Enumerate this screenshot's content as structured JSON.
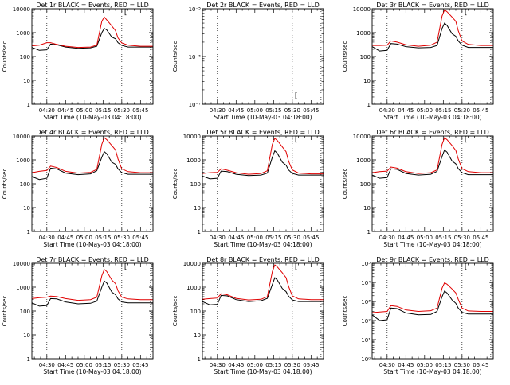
{
  "x_tick_labels": [
    "04:30",
    "04:45",
    "05:00",
    "05:15",
    "05:30",
    "05:45"
  ],
  "x_axis_label": "Start Time (10-May-03 04:18:00)",
  "y_axis_label": "Counts/sec",
  "bracket_marker": "[",
  "colors": {
    "events": "#000000",
    "lld": "#e00000",
    "axes": "#000000"
  },
  "chart_data": [
    {
      "type": "line",
      "title": "Det 1r BLACK = Events, RED = LLD",
      "y_scale": "log",
      "ylim": [
        1,
        10000
      ],
      "y_ticks": [
        "1",
        "10",
        "100",
        "1000",
        "10000"
      ],
      "xlim": [
        "04:18",
        "05:55"
      ],
      "vlines": [
        "04:30",
        "05:30",
        "05:53"
      ],
      "x": [
        "04:18",
        "04:24",
        "04:30",
        "04:33",
        "04:38",
        "04:45",
        "04:55",
        "05:05",
        "05:10",
        "05:14",
        "05:16",
        "05:18",
        "05:22",
        "05:25",
        "05:27",
        "05:30",
        "05:35",
        "05:45",
        "05:55"
      ],
      "series": [
        {
          "name": "BLACK = Events",
          "color": "#000000",
          "values": [
            240,
            180,
            190,
            330,
            310,
            250,
            220,
            230,
            270,
            1000,
            1500,
            1300,
            650,
            550,
            380,
            290,
            250,
            250,
            250
          ]
        },
        {
          "name": "RED = LLD",
          "color": "#e00000",
          "values": [
            280,
            300,
            380,
            380,
            320,
            270,
            240,
            250,
            300,
            3000,
            4500,
            3400,
            1900,
            1200,
            600,
            370,
            300,
            270,
            270
          ]
        }
      ]
    },
    {
      "type": "line",
      "title": "Det 2r BLACK = Events, RED = LLD",
      "y_scale": "log",
      "ylim": [
        1e-07,
        1e-05
      ],
      "y_ticks": [
        "10⁻⁷",
        "10⁻⁶",
        "10⁻⁵"
      ],
      "xlim": [
        "04:18",
        "05:55"
      ],
      "vlines": [
        "04:30",
        "05:30",
        "05:53"
      ],
      "x": [],
      "series": []
    },
    {
      "type": "line",
      "title": "Det 3r BLACK = Events, RED = LLD",
      "y_scale": "log",
      "ylim": [
        1,
        10000
      ],
      "y_ticks": [
        "1",
        "10",
        "100",
        "1000",
        "10000"
      ],
      "xlim": [
        "04:18",
        "05:55"
      ],
      "vlines": [
        "04:30",
        "05:30",
        "05:53"
      ],
      "x": [
        "04:18",
        "04:24",
        "04:30",
        "04:33",
        "04:38",
        "04:45",
        "04:55",
        "05:05",
        "05:10",
        "05:14",
        "05:16",
        "05:18",
        "05:22",
        "05:25",
        "05:27",
        "05:30",
        "05:35",
        "05:45",
        "05:55"
      ],
      "series": [
        {
          "name": "BLACK = Events",
          "color": "#000000",
          "values": [
            260,
            170,
            180,
            350,
            330,
            260,
            230,
            240,
            290,
            1500,
            2500,
            2000,
            900,
            700,
            450,
            300,
            240,
            240,
            240
          ]
        },
        {
          "name": "RED = LLD",
          "color": "#e00000",
          "values": [
            290,
            290,
            300,
            450,
            400,
            310,
            270,
            300,
            400,
            5000,
            9000,
            7500,
            4500,
            3000,
            1200,
            450,
            320,
            290,
            290
          ]
        }
      ]
    },
    {
      "type": "line",
      "title": "Det 4r BLACK = Events, RED = LLD",
      "y_scale": "log",
      "ylim": [
        1,
        10000
      ],
      "y_ticks": [
        "1",
        "10",
        "100",
        "1000",
        "10000"
      ],
      "xlim": [
        "04:18",
        "05:55"
      ],
      "vlines": [
        "04:30",
        "05:30",
        "05:53"
      ],
      "x": [
        "04:18",
        "04:24",
        "04:30",
        "04:33",
        "04:38",
        "04:45",
        "04:55",
        "05:05",
        "05:10",
        "05:14",
        "05:16",
        "05:18",
        "05:22",
        "05:25",
        "05:27",
        "05:30",
        "05:35",
        "05:45",
        "05:55"
      ],
      "series": [
        {
          "name": "BLACK = Events",
          "color": "#000000",
          "values": [
            200,
            150,
            170,
            450,
            420,
            280,
            240,
            260,
            350,
            1300,
            2200,
            1800,
            800,
            650,
            420,
            290,
            250,
            250,
            250
          ]
        },
        {
          "name": "RED = LLD",
          "color": "#e00000",
          "values": [
            290,
            330,
            360,
            550,
            480,
            330,
            280,
            300,
            400,
            4500,
            8500,
            7000,
            4000,
            2600,
            1100,
            420,
            320,
            290,
            290
          ]
        }
      ]
    },
    {
      "type": "line",
      "title": "Det 5r BLACK = Events, RED = LLD",
      "y_scale": "log",
      "ylim": [
        1,
        10000
      ],
      "y_ticks": [
        "1",
        "10",
        "100",
        "1000",
        "10000"
      ],
      "xlim": [
        "04:18",
        "05:55"
      ],
      "vlines": [
        "04:30",
        "05:30",
        "05:53"
      ],
      "x": [
        "04:18",
        "04:24",
        "04:30",
        "04:33",
        "04:38",
        "04:45",
        "04:55",
        "05:05",
        "05:10",
        "05:14",
        "05:16",
        "05:18",
        "05:22",
        "05:25",
        "05:27",
        "05:30",
        "05:35",
        "05:45",
        "05:55"
      ],
      "series": [
        {
          "name": "BLACK = Events",
          "color": "#000000",
          "values": [
            210,
            160,
            170,
            340,
            320,
            250,
            220,
            230,
            280,
            1300,
            2400,
            1900,
            800,
            600,
            380,
            270,
            230,
            230,
            230
          ]
        },
        {
          "name": "RED = LLD",
          "color": "#e00000",
          "values": [
            270,
            290,
            300,
            420,
            370,
            290,
            250,
            270,
            350,
            4500,
            8000,
            6500,
            3500,
            2200,
            900,
            380,
            280,
            260,
            260
          ]
        }
      ]
    },
    {
      "type": "line",
      "title": "Det 6r BLACK = Events, RED = LLD",
      "y_scale": "log",
      "ylim": [
        1,
        10000
      ],
      "y_ticks": [
        "1",
        "10",
        "100",
        "1000",
        "10000"
      ],
      "xlim": [
        "04:18",
        "05:55"
      ],
      "vlines": [
        "04:30",
        "05:30",
        "05:53"
      ],
      "x": [
        "04:18",
        "04:24",
        "04:30",
        "04:33",
        "04:38",
        "04:45",
        "04:55",
        "05:05",
        "05:10",
        "05:14",
        "05:16",
        "05:18",
        "05:22",
        "05:25",
        "05:27",
        "05:30",
        "05:35",
        "05:45",
        "05:55"
      ],
      "series": [
        {
          "name": "BLACK = Events",
          "color": "#000000",
          "values": [
            230,
            170,
            180,
            420,
            400,
            270,
            230,
            250,
            330,
            1400,
            2600,
            2100,
            900,
            680,
            430,
            290,
            240,
            240,
            240
          ]
        },
        {
          "name": "RED = LLD",
          "color": "#e00000",
          "values": [
            290,
            320,
            340,
            500,
            450,
            320,
            270,
            290,
            380,
            4500,
            8500,
            7000,
            4000,
            2500,
            1100,
            430,
            320,
            290,
            290
          ]
        }
      ]
    },
    {
      "type": "line",
      "title": "Det 7r BLACK = Events, RED = LLD",
      "y_scale": "log",
      "ylim": [
        1,
        10000
      ],
      "y_ticks": [
        "1",
        "10",
        "100",
        "1000",
        "10000"
      ],
      "xlim": [
        "04:18",
        "05:55"
      ],
      "vlines": [
        "04:30",
        "05:30",
        "05:53"
      ],
      "x": [
        "04:18",
        "04:24",
        "04:30",
        "04:33",
        "04:38",
        "04:45",
        "04:55",
        "05:05",
        "05:10",
        "05:14",
        "05:16",
        "05:18",
        "05:22",
        "05:25",
        "05:27",
        "05:30",
        "05:35",
        "05:45",
        "05:55"
      ],
      "series": [
        {
          "name": "BLACK = Events",
          "color": "#000000",
          "values": [
            220,
            160,
            170,
            330,
            320,
            240,
            200,
            210,
            260,
            1000,
            1800,
            1500,
            620,
            480,
            320,
            240,
            220,
            220,
            220
          ]
        },
        {
          "name": "RED = LLD",
          "color": "#e00000",
          "values": [
            330,
            360,
            380,
            420,
            400,
            330,
            280,
            300,
            380,
            3000,
            5500,
            4500,
            2000,
            1400,
            700,
            380,
            320,
            300,
            300
          ]
        }
      ]
    },
    {
      "type": "line",
      "title": "Det 8r BLACK = Events, RED = LLD",
      "y_scale": "log",
      "ylim": [
        1,
        10000
      ],
      "y_ticks": [
        "1",
        "10",
        "100",
        "1000",
        "10000"
      ],
      "xlim": [
        "04:18",
        "05:55"
      ],
      "vlines": [
        "04:30",
        "05:30",
        "05:53"
      ],
      "x": [
        "04:18",
        "04:24",
        "04:30",
        "04:33",
        "04:38",
        "04:45",
        "04:55",
        "05:05",
        "05:10",
        "05:14",
        "05:16",
        "05:18",
        "05:22",
        "05:25",
        "05:27",
        "05:30",
        "05:35",
        "05:45",
        "05:55"
      ],
      "series": [
        {
          "name": "BLACK = Events",
          "color": "#000000",
          "values": [
            250,
            180,
            190,
            450,
            430,
            300,
            250,
            270,
            340,
            1300,
            2500,
            2000,
            880,
            650,
            420,
            290,
            250,
            250,
            250
          ]
        },
        {
          "name": "RED = LLD",
          "color": "#e00000",
          "values": [
            310,
            330,
            350,
            530,
            480,
            340,
            290,
            310,
            400,
            4500,
            8500,
            7000,
            4000,
            2500,
            1100,
            430,
            320,
            300,
            300
          ]
        }
      ]
    },
    {
      "type": "line",
      "title": "Det 9r BLACK = Events, RED = LLD",
      "y_scale": "log",
      "ylim": [
        1,
        100000
      ],
      "y_ticks": [
        "10⁰",
        "10¹",
        "10²",
        "10³",
        "10⁴",
        "10⁵"
      ],
      "xlim": [
        "04:18",
        "05:55"
      ],
      "vlines": [
        "04:30",
        "05:30",
        "05:53"
      ],
      "x": [
        "04:18",
        "04:24",
        "04:30",
        "04:33",
        "04:38",
        "04:45",
        "04:55",
        "05:05",
        "05:10",
        "05:14",
        "05:16",
        "05:18",
        "05:22",
        "05:25",
        "05:27",
        "05:30",
        "05:35",
        "05:45",
        "05:55"
      ],
      "series": [
        {
          "name": "BLACK = Events",
          "color": "#000000",
          "values": [
            200,
            100,
            110,
            450,
            420,
            250,
            200,
            210,
            300,
            1800,
            3500,
            2800,
            1200,
            800,
            450,
            270,
            220,
            220,
            220
          ]
        },
        {
          "name": "RED = LLD",
          "color": "#e00000",
          "values": [
            260,
            280,
            300,
            600,
            550,
            360,
            300,
            330,
            450,
            5000,
            9500,
            8000,
            4500,
            2800,
            1300,
            450,
            320,
            300,
            300
          ]
        }
      ]
    }
  ]
}
